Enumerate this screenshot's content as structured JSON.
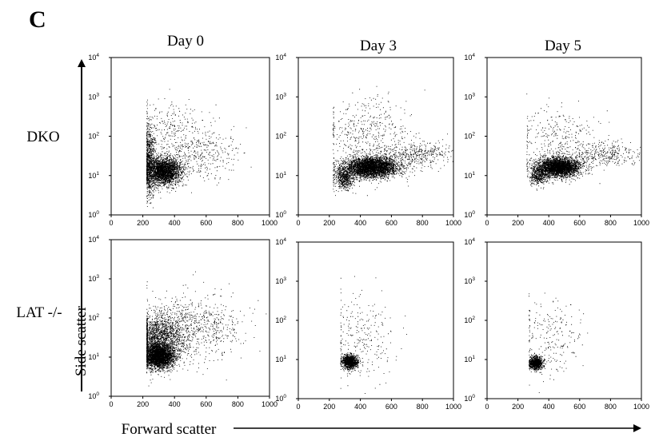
{
  "figure": {
    "panel_letter": "C",
    "columns": [
      "Day 0",
      "Day 3",
      "Day 5"
    ],
    "rows": [
      "DKO",
      "LAT -/-"
    ],
    "x_axis_title": "Forward scatter",
    "y_axis_title": "Side scatter"
  },
  "chart_data": [
    {
      "type": "scatter",
      "row": "DKO",
      "column": "Day 0",
      "title": "",
      "xlabel": "",
      "ylabel": "",
      "xlim": [
        0,
        1000
      ],
      "ylim": [
        1,
        10000
      ],
      "y_scale": "log",
      "x_ticks": [
        0,
        200,
        400,
        600,
        800,
        1000
      ],
      "y_ticks": [
        "10^0",
        "10^1",
        "10^2",
        "10^3",
        "10^4"
      ],
      "point_color": "#000000",
      "populations": [
        {
          "x_mean": 330,
          "x_sd": 55,
          "y_log_mean": 1.12,
          "y_log_sd": 0.17,
          "share": 0.66
        },
        {
          "x_mean": 240,
          "x_sd": 18,
          "y_log_mean": 1.35,
          "y_log_sd": 0.45,
          "share": 0.18
        },
        {
          "x_mean": 560,
          "x_sd": 140,
          "y_log_mean": 1.55,
          "y_log_sd": 0.35,
          "share": 0.08
        },
        {
          "x_mean": 380,
          "x_sd": 120,
          "y_log_mean": 2.0,
          "y_log_sd": 0.45,
          "share": 0.08
        }
      ],
      "x_min_gate": 222,
      "n_points": 4200
    },
    {
      "type": "scatter",
      "row": "DKO",
      "column": "Day 3",
      "title": "",
      "xlabel": "",
      "ylabel": "",
      "xlim": [
        0,
        1000
      ],
      "ylim": [
        1,
        10000
      ],
      "y_scale": "log",
      "x_ticks": [
        0,
        200,
        400,
        600,
        800,
        1000
      ],
      "y_ticks": [
        "10^0",
        "10^1",
        "10^2",
        "10^3",
        "10^4"
      ],
      "point_color": "#000000",
      "populations": [
        {
          "x_mean": 470,
          "x_sd": 85,
          "y_log_mean": 1.22,
          "y_log_sd": 0.13,
          "share": 0.7
        },
        {
          "x_mean": 300,
          "x_sd": 30,
          "y_log_mean": 0.95,
          "y_log_sd": 0.15,
          "share": 0.12
        },
        {
          "x_mean": 780,
          "x_sd": 130,
          "y_log_mean": 1.55,
          "y_log_sd": 0.15,
          "share": 0.08
        },
        {
          "x_mean": 450,
          "x_sd": 150,
          "y_log_mean": 2.0,
          "y_log_sd": 0.5,
          "share": 0.1
        }
      ],
      "x_min_gate": 222,
      "n_points": 5200
    },
    {
      "type": "scatter",
      "row": "DKO",
      "column": "Day 5",
      "title": "",
      "xlabel": "",
      "ylabel": "",
      "xlim": [
        0,
        1000
      ],
      "ylim": [
        1,
        10000
      ],
      "y_scale": "log",
      "x_ticks": [
        0,
        200,
        400,
        600,
        800,
        1000
      ],
      "y_ticks": [
        "10^0",
        "10^1",
        "10^2",
        "10^3",
        "10^4"
      ],
      "point_color": "#000000",
      "populations": [
        {
          "x_mean": 460,
          "x_sd": 70,
          "y_log_mean": 1.22,
          "y_log_sd": 0.12,
          "share": 0.74
        },
        {
          "x_mean": 330,
          "x_sd": 30,
          "y_log_mean": 1.0,
          "y_log_sd": 0.12,
          "share": 0.1
        },
        {
          "x_mean": 760,
          "x_sd": 120,
          "y_log_mean": 1.55,
          "y_log_sd": 0.15,
          "share": 0.08
        },
        {
          "x_mean": 470,
          "x_sd": 130,
          "y_log_mean": 1.9,
          "y_log_sd": 0.45,
          "share": 0.08
        }
      ],
      "x_min_gate": 255,
      "n_points": 4400
    },
    {
      "type": "scatter",
      "row": "LAT -/-",
      "column": "Day 0",
      "title": "",
      "xlabel": "",
      "ylabel": "",
      "xlim": [
        0,
        1000
      ],
      "ylim": [
        1,
        10000
      ],
      "y_scale": "log",
      "x_ticks": [
        0,
        200,
        400,
        600,
        800,
        1000
      ],
      "y_ticks": [
        "10^0",
        "10^1",
        "10^2",
        "10^3",
        "10^4"
      ],
      "point_color": "#000000",
      "populations": [
        {
          "x_mean": 300,
          "x_sd": 45,
          "y_log_mean": 1.02,
          "y_log_sd": 0.15,
          "share": 0.55
        },
        {
          "x_mean": 300,
          "x_sd": 75,
          "y_log_mean": 1.45,
          "y_log_sd": 0.32,
          "share": 0.3
        },
        {
          "x_mean": 500,
          "x_sd": 160,
          "y_log_mean": 1.75,
          "y_log_sd": 0.4,
          "share": 0.15
        }
      ],
      "x_min_gate": 222,
      "n_points": 5600
    },
    {
      "type": "scatter",
      "row": "LAT -/-",
      "column": "Day 3",
      "title": "",
      "xlabel": "",
      "ylabel": "",
      "xlim": [
        0,
        1000
      ],
      "ylim": [
        1,
        10000
      ],
      "y_scale": "log",
      "x_ticks": [
        0,
        200,
        400,
        600,
        800,
        1000
      ],
      "y_ticks": [
        "10^0",
        "10^1",
        "10^2",
        "10^3",
        "10^4"
      ],
      "point_color": "#000000",
      "populations": [
        {
          "x_mean": 330,
          "x_sd": 25,
          "y_log_mean": 0.95,
          "y_log_sd": 0.09,
          "share": 0.8
        },
        {
          "x_mean": 400,
          "x_sd": 110,
          "y_log_mean": 1.6,
          "y_log_sd": 0.55,
          "share": 0.2
        }
      ],
      "x_min_gate": 270,
      "n_points": 1300
    },
    {
      "type": "scatter",
      "row": "LAT -/-",
      "column": "Day 5",
      "title": "",
      "xlabel": "",
      "ylabel": "",
      "xlim": [
        0,
        1000
      ],
      "ylim": [
        1,
        10000
      ],
      "y_scale": "log",
      "x_ticks": [
        0,
        200,
        400,
        600,
        800,
        1000
      ],
      "y_ticks": [
        "10^0",
        "10^1",
        "10^2",
        "10^3",
        "10^4"
      ],
      "point_color": "#000000",
      "populations": [
        {
          "x_mean": 315,
          "x_sd": 22,
          "y_log_mean": 0.92,
          "y_log_sd": 0.08,
          "share": 0.8
        },
        {
          "x_mean": 400,
          "x_sd": 110,
          "y_log_mean": 1.55,
          "y_log_sd": 0.5,
          "share": 0.2
        }
      ],
      "x_min_gate": 270,
      "n_points": 1200
    }
  ]
}
